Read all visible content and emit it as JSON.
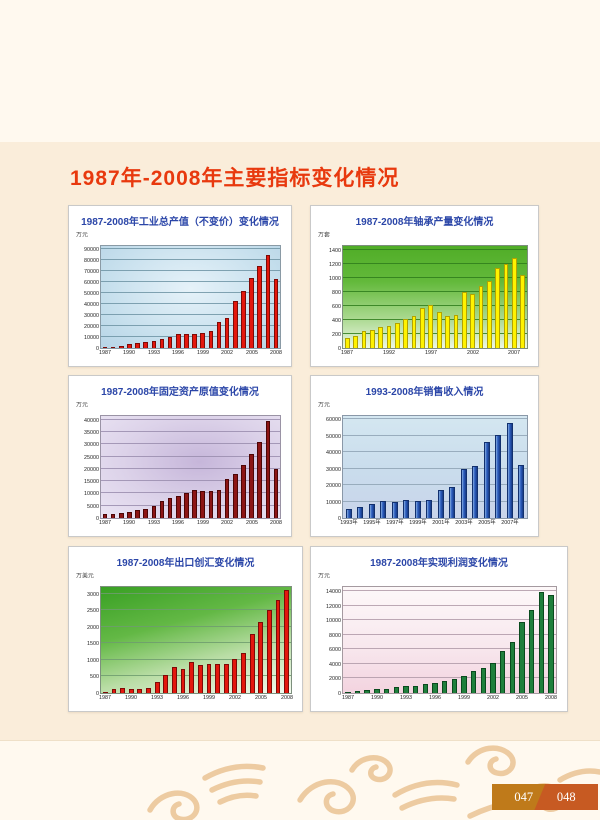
{
  "page": {
    "title": "1987年-2008年主要指标变化情况",
    "title_color": "#E8390E",
    "background": "#FAEDDA",
    "band_color": "#FFF9EF",
    "ornament_color": "#EDCBA1"
  },
  "footer": {
    "page_left": "047",
    "page_right": "048",
    "left_bg": "#BF7A1A",
    "right_bg": "#C75A22",
    "text_color": "#FFFFFF"
  },
  "chart_data": [
    {
      "type": "bar",
      "title": "1987-2008年工业总产值（不变价）变化情况",
      "unit": "万元",
      "categories": [
        "1987",
        "1988",
        "1989",
        "1990",
        "1991",
        "1992",
        "1993",
        "1994",
        "1995",
        "1996",
        "1997",
        "1998",
        "1999",
        "2000",
        "2001",
        "2002",
        "2003",
        "2004",
        "2005",
        "2006",
        "2007",
        "2008"
      ],
      "values": [
        800,
        1300,
        1900,
        3400,
        4400,
        5400,
        6500,
        7900,
        10400,
        12400,
        13100,
        12900,
        13400,
        15400,
        23800,
        27400,
        43000,
        51800,
        64000,
        74500,
        85000,
        62500
      ],
      "ylim": [
        0,
        90000
      ],
      "ytick_step": 10000,
      "plot_max": 93000,
      "xticks": [
        {
          "i": 0,
          "label": "1987"
        },
        {
          "i": 3,
          "label": "1990"
        },
        {
          "i": 6,
          "label": "1993"
        },
        {
          "i": 9,
          "label": "1996"
        },
        {
          "i": 12,
          "label": "1999"
        },
        {
          "i": 15,
          "label": "2002"
        },
        {
          "i": 18,
          "label": "2005"
        },
        {
          "i": 21,
          "label": "2008"
        }
      ],
      "style": {
        "bg": "radial-gradient(ellipse at 50% 42%, #E6F2F9 0%, #C4DEEC 70%, #B7D4E6 100%)",
        "grid": "#6E94A5",
        "bar": "#E3170D",
        "bar_border": "#7F0A06",
        "plot_border": "#8A9AA5"
      }
    },
    {
      "type": "bar",
      "title": "1987-2008年轴承产量变化情况",
      "unit": "万套",
      "categories": [
        "1987",
        "1988",
        "1989",
        "1990",
        "1991",
        "1992",
        "1993",
        "1994",
        "1995",
        "1996",
        "1997",
        "1998",
        "1999",
        "2000",
        "2001",
        "2002",
        "2003",
        "2004",
        "2005",
        "2006",
        "2007",
        "2008"
      ],
      "values": [
        140,
        175,
        240,
        255,
        295,
        310,
        360,
        410,
        465,
        575,
        610,
        510,
        460,
        475,
        800,
        780,
        890,
        960,
        1150,
        1200,
        1290,
        1040
      ],
      "ylim": [
        0,
        1400
      ],
      "ytick_step": 200,
      "plot_max": 1460,
      "xticks": [
        {
          "i": 0,
          "label": "1987"
        },
        {
          "i": 5,
          "label": "1992"
        },
        {
          "i": 10,
          "label": "1997"
        },
        {
          "i": 15,
          "label": "2002"
        },
        {
          "i": 20,
          "label": "2007"
        }
      ],
      "style": {
        "bg": "linear-gradient(180deg, #50AD27 0%, #63B93B 35%, #A8D88D 70%, #EDF7E5 100%)",
        "grid": "#2F7D1C",
        "bar": "#FFF200",
        "bar_border": "#B3A300",
        "plot_border": "#7D8F7D"
      }
    },
    {
      "type": "bar",
      "title": "1987-2008年固定资产原值变化情况",
      "unit": "万元",
      "categories": [
        "1987",
        "1988",
        "1989",
        "1990",
        "1991",
        "1992",
        "1993",
        "1994",
        "1995",
        "1996",
        "1997",
        "1998",
        "1999",
        "2000",
        "2001",
        "2002",
        "2003",
        "2004",
        "2005",
        "2006",
        "2007",
        "2008"
      ],
      "values": [
        1500,
        1800,
        2100,
        2500,
        3200,
        3800,
        4800,
        6800,
        8200,
        8800,
        10000,
        11300,
        10800,
        11000,
        11300,
        16000,
        18000,
        21500,
        26000,
        30800,
        39500,
        20000
      ],
      "ylim": [
        0,
        40000
      ],
      "ytick_step": 5000,
      "plot_max": 41500,
      "xticks": [
        {
          "i": 0,
          "label": "1987"
        },
        {
          "i": 3,
          "label": "1990"
        },
        {
          "i": 6,
          "label": "1993"
        },
        {
          "i": 9,
          "label": "1996"
        },
        {
          "i": 12,
          "label": "1999"
        },
        {
          "i": 15,
          "label": "2002"
        },
        {
          "i": 18,
          "label": "2005"
        },
        {
          "i": 21,
          "label": "2008"
        }
      ],
      "style": {
        "bg": "radial-gradient(ellipse at 55% 45%, #C6B6DA 0%, #DCD2E9 55%, #EAE4F3 100%)",
        "grid": "#9A8DAE",
        "bar": "#8C1515",
        "bar_border": "#4D0505",
        "plot_border": "#9A93A5"
      }
    },
    {
      "type": "bar",
      "title": "1993-2008年销售收入情况",
      "unit": "万元",
      "categories": [
        "1993",
        "1994",
        "1995",
        "1996",
        "1997",
        "1998",
        "1999",
        "2000",
        "2001",
        "2002",
        "2003",
        "2004",
        "2005",
        "2006",
        "2007",
        "2008"
      ],
      "values": [
        5500,
        6500,
        8500,
        10500,
        9800,
        10800,
        10500,
        10800,
        16800,
        18800,
        29500,
        31500,
        46000,
        50500,
        57500,
        32000
      ],
      "ylim": [
        0,
        60000
      ],
      "ytick_step": 10000,
      "plot_max": 62000,
      "xticks": [
        {
          "i": 0,
          "label": "1993年"
        },
        {
          "i": 2,
          "label": "1995年"
        },
        {
          "i": 4,
          "label": "1997年"
        },
        {
          "i": 6,
          "label": "1999年"
        },
        {
          "i": 8,
          "label": "2001年"
        },
        {
          "i": 10,
          "label": "2003年"
        },
        {
          "i": 12,
          "label": "2005年"
        },
        {
          "i": 14,
          "label": "2007年"
        }
      ],
      "style": {
        "bg": "linear-gradient(180deg, #D4E7F1 0%, #C9DCEC 55%, #C9D4EA 100%)",
        "grid": "#8FA3B5",
        "bar": "linear-gradient(90deg, #86AEE0 0%, #2E5EC0 45%, #173B86 100%)",
        "bar_border": "#12306E",
        "plot_border": "#8A98A8"
      }
    },
    {
      "type": "bar",
      "title": "1987-2008年出口创汇变化情况",
      "unit": "万美元",
      "categories": [
        "1987",
        "1988",
        "1989",
        "1990",
        "1991",
        "1992",
        "1993",
        "1994",
        "1995",
        "1996",
        "1997",
        "1998",
        "1999",
        "2000",
        "2001",
        "2002",
        "2003",
        "2004",
        "2005",
        "2006",
        "2007",
        "2008"
      ],
      "values": [
        30,
        120,
        150,
        130,
        130,
        160,
        320,
        530,
        780,
        730,
        930,
        850,
        890,
        890,
        880,
        1030,
        1200,
        1780,
        2150,
        2500,
        2800,
        3100
      ],
      "ylim": [
        0,
        3000
      ],
      "ytick_step": 500,
      "plot_max": 3200,
      "xticks": [
        {
          "i": 0,
          "label": "1987"
        },
        {
          "i": 3,
          "label": "1990"
        },
        {
          "i": 6,
          "label": "1993"
        },
        {
          "i": 9,
          "label": "1996"
        },
        {
          "i": 12,
          "label": "1999"
        },
        {
          "i": 15,
          "label": "2002"
        },
        {
          "i": 18,
          "label": "2005"
        },
        {
          "i": 21,
          "label": "2008"
        }
      ],
      "style": {
        "bg": "linear-gradient(165deg, #38A023 0%, #63B845 35%, #B9DDA5 65%, #F3FAEF 100%)",
        "grid": "#6F9C6F",
        "bar": "#E3170D",
        "bar_border": "#7F0A06",
        "plot_border": "#7D8F7D"
      }
    },
    {
      "type": "bar",
      "title": "1987-2008年实现利润变化情况",
      "unit": "万元",
      "categories": [
        "1987",
        "1988",
        "1989",
        "1990",
        "1991",
        "1992",
        "1993",
        "1994",
        "1995",
        "1996",
        "1997",
        "1998",
        "1999",
        "2000",
        "2001",
        "2002",
        "2003",
        "2004",
        "2005",
        "2006",
        "2007",
        "2008"
      ],
      "values": [
        150,
        300,
        400,
        500,
        600,
        800,
        900,
        950,
        1200,
        1400,
        1600,
        1900,
        2300,
        3000,
        3500,
        4100,
        5800,
        7000,
        9800,
        11500,
        13900,
        13500
      ],
      "ylim": [
        0,
        14000
      ],
      "ytick_step": 2000,
      "plot_max": 14600,
      "xticks": [
        {
          "i": 0,
          "label": "1987"
        },
        {
          "i": 3,
          "label": "1990"
        },
        {
          "i": 6,
          "label": "1993"
        },
        {
          "i": 9,
          "label": "1996"
        },
        {
          "i": 12,
          "label": "1999"
        },
        {
          "i": 15,
          "label": "2002"
        },
        {
          "i": 18,
          "label": "2005"
        },
        {
          "i": 21,
          "label": "2008"
        }
      ],
      "style": {
        "bg": "linear-gradient(180deg, #FDF8F9 0%, #F8E8EE 55%, #F3D3DF 100%)",
        "grid": "#B09AA8",
        "bar": "#1F7F3C",
        "bar_border": "#0A4A1E",
        "plot_border": "#A59AA0"
      }
    }
  ]
}
